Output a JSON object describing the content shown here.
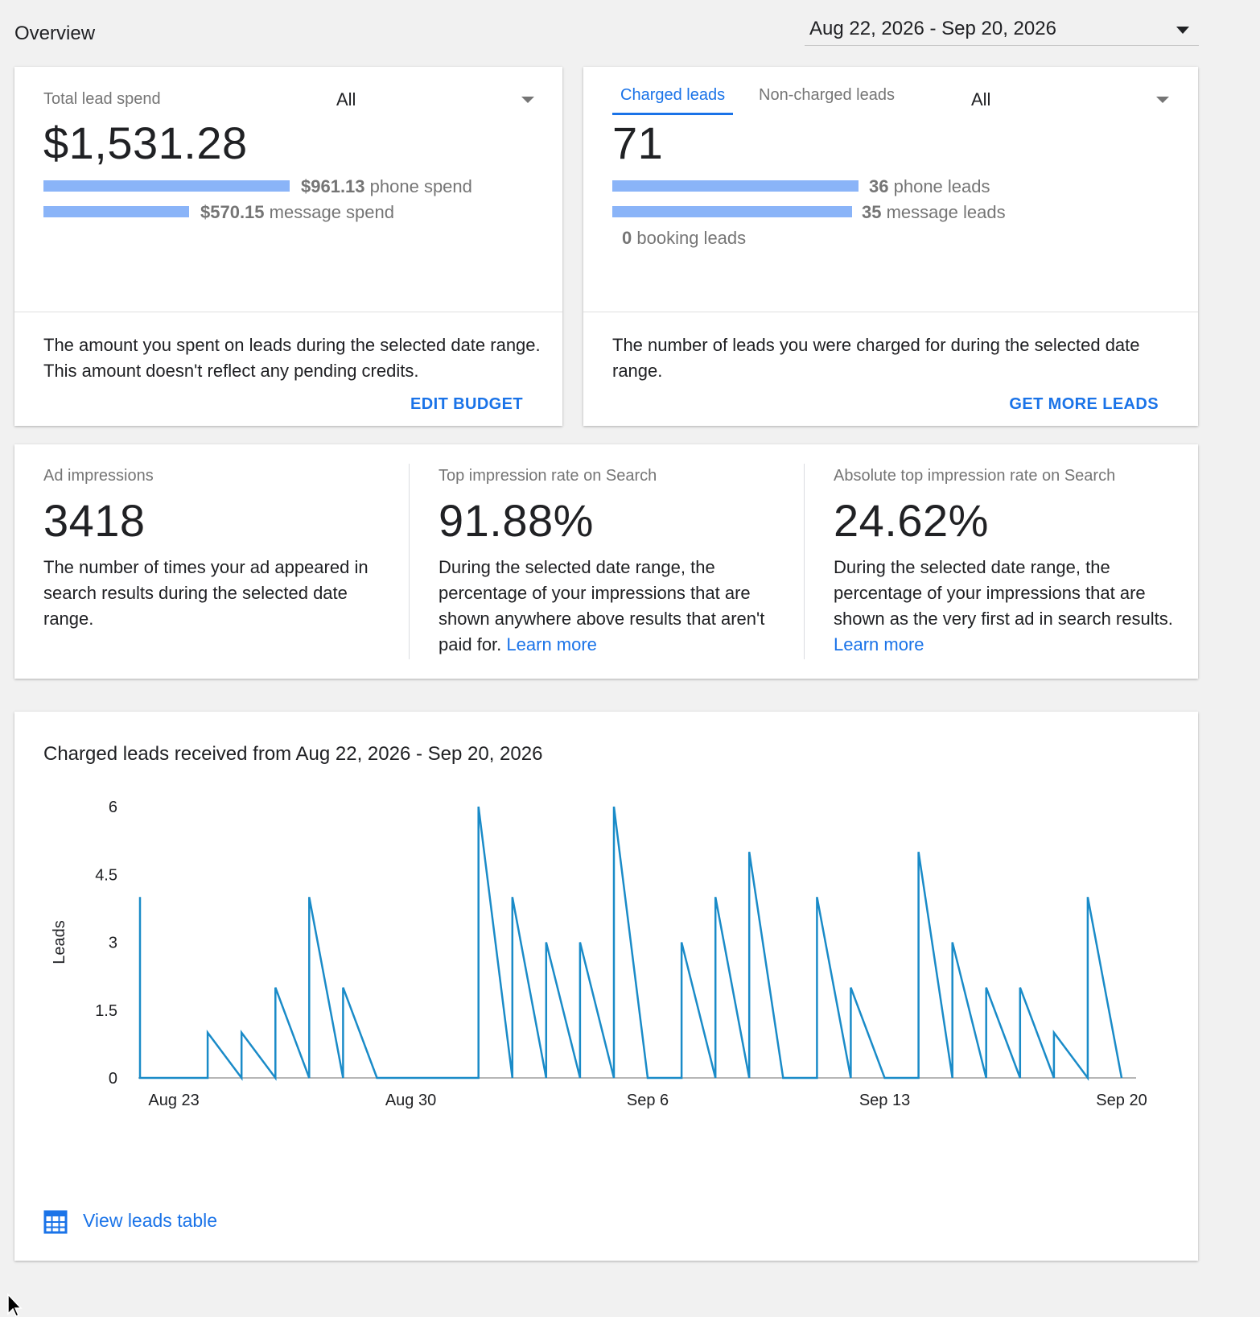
{
  "header": {
    "title": "Overview",
    "date_range": "Aug 22, 2026 - Sep 20, 2026"
  },
  "spend_card": {
    "label": "Total lead spend",
    "filter": "All",
    "total": "$1,531.28",
    "phone_amount": "$961.13",
    "phone_suffix": "phone spend",
    "phone_share": 0.628,
    "message_amount": "$570.15",
    "message_suffix": "message spend",
    "message_share": 0.372,
    "description": "The amount you spent on leads during the selected date range. This amount doesn't reflect any pending credits.",
    "action": "EDIT BUDGET"
  },
  "leads_card": {
    "tabs": [
      "Charged leads",
      "Non-charged leads"
    ],
    "active_tab": "Charged leads",
    "filter": "All",
    "total": "71",
    "phone_count": "36",
    "phone_suffix": "phone leads",
    "message_count": "35",
    "message_suffix": "message leads",
    "booking_count": "0",
    "booking_suffix": "booking leads",
    "description": "The number of leads you were charged for during the selected date range.",
    "action": "GET MORE LEADS"
  },
  "metrics": [
    {
      "label": "Ad impressions",
      "value": "3418",
      "description": "The number of times your ad appeared in search results during the selected date range."
    },
    {
      "label": "Top impression rate on Search",
      "value": "91.88%",
      "description": "During the selected date range, the percentage of your impressions that are shown anywhere above results that aren't paid for.",
      "link": "Learn more"
    },
    {
      "label": "Absolute top impression rate on Search",
      "value": "24.62%",
      "description": "During the selected date range, the percentage of your impressions that are shown as the very first ad in search results.",
      "link": "Learn more"
    }
  ],
  "chart_card": {
    "title": "Charged leads received from Aug 22, 2026 - Sep 20, 2026",
    "view_table": "View leads table"
  },
  "chart_data": {
    "type": "line",
    "title": "Charged leads received from Aug 22, 2026 - Sep 20, 2026",
    "ylabel": "Leads",
    "xlabel": "",
    "ylim": [
      0,
      6
    ],
    "yticks": [
      "0",
      "1.5",
      "3",
      "4.5",
      "6"
    ],
    "xtick_labels": [
      "Aug 23",
      "Aug 30",
      "Sep 6",
      "Sep 13",
      "Sep 20"
    ],
    "color": "#1a8bc8",
    "points": [
      {
        "x": "Aug 22",
        "y": 4
      },
      {
        "x": "Aug 22",
        "y": 0
      },
      {
        "x": "Aug 23",
        "y": 0
      },
      {
        "x": "Aug 24",
        "y": 0
      },
      {
        "x": "Aug 24",
        "y": 1
      },
      {
        "x": "Aug 25",
        "y": 0
      },
      {
        "x": "Aug 25",
        "y": 1
      },
      {
        "x": "Aug 26",
        "y": 0
      },
      {
        "x": "Aug 26",
        "y": 2
      },
      {
        "x": "Aug 27",
        "y": 0
      },
      {
        "x": "Aug 27",
        "y": 4
      },
      {
        "x": "Aug 28",
        "y": 0
      },
      {
        "x": "Aug 28",
        "y": 2
      },
      {
        "x": "Aug 29",
        "y": 0
      },
      {
        "x": "Aug 30",
        "y": 0
      },
      {
        "x": "Aug 31",
        "y": 0
      },
      {
        "x": "Sep 1",
        "y": 0
      },
      {
        "x": "Sep 1",
        "y": 6
      },
      {
        "x": "Sep 2",
        "y": 0
      },
      {
        "x": "Sep 2",
        "y": 4
      },
      {
        "x": "Sep 3",
        "y": 0
      },
      {
        "x": "Sep 3",
        "y": 3
      },
      {
        "x": "Sep 4",
        "y": 0
      },
      {
        "x": "Sep 4",
        "y": 3
      },
      {
        "x": "Sep 5",
        "y": 0
      },
      {
        "x": "Sep 5",
        "y": 6
      },
      {
        "x": "Sep 6",
        "y": 0
      },
      {
        "x": "Sep 7",
        "y": 0
      },
      {
        "x": "Sep 7",
        "y": 3
      },
      {
        "x": "Sep 8",
        "y": 0
      },
      {
        "x": "Sep 8",
        "y": 4
      },
      {
        "x": "Sep 9",
        "y": 0
      },
      {
        "x": "Sep 9",
        "y": 5
      },
      {
        "x": "Sep 10",
        "y": 0
      },
      {
        "x": "Sep 11",
        "y": 0
      },
      {
        "x": "Sep 11",
        "y": 4
      },
      {
        "x": "Sep 12",
        "y": 0
      },
      {
        "x": "Sep 12",
        "y": 2
      },
      {
        "x": "Sep 13",
        "y": 0
      },
      {
        "x": "Sep 14",
        "y": 0
      },
      {
        "x": "Sep 14",
        "y": 5
      },
      {
        "x": "Sep 15",
        "y": 0
      },
      {
        "x": "Sep 15",
        "y": 3
      },
      {
        "x": "Sep 16",
        "y": 0
      },
      {
        "x": "Sep 16",
        "y": 2
      },
      {
        "x": "Sep 17",
        "y": 0
      },
      {
        "x": "Sep 17",
        "y": 2
      },
      {
        "x": "Sep 18",
        "y": 0
      },
      {
        "x": "Sep 18",
        "y": 1
      },
      {
        "x": "Sep 19",
        "y": 0
      },
      {
        "x": "Sep 19",
        "y": 4
      },
      {
        "x": "Sep 20",
        "y": 0
      }
    ],
    "grid": false,
    "legend": "none"
  },
  "icons": {
    "dropdown": "arrow-drop-down-icon",
    "table": "table-grid-icon"
  }
}
